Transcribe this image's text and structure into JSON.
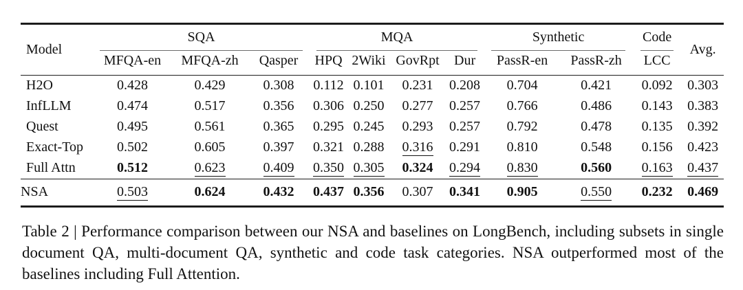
{
  "colors": {
    "background": "#ffffff",
    "text": "#111111",
    "rule_heavy": "#1c1c1c",
    "rule_light": "#1c1c1c",
    "cmidrule": "#6b6b6b"
  },
  "table": {
    "model_header": "Model",
    "avg_header": "Avg.",
    "groups": [
      {
        "label": "SQA",
        "span": 3
      },
      {
        "label": "MQA",
        "span": 4
      },
      {
        "label": "Synthetic",
        "span": 2
      },
      {
        "label": "Code",
        "span": 1
      }
    ],
    "columns": [
      "MFQA-en",
      "MFQA-zh",
      "Qasper",
      "HPQ",
      "2Wiki",
      "GovRpt",
      "Dur",
      "PassR-en",
      "PassR-zh",
      "LCC"
    ],
    "rows": [
      {
        "model": "H2O",
        "section": "baseline",
        "cells": [
          {
            "t": "0.428",
            "s": ""
          },
          {
            "t": "0.429",
            "s": ""
          },
          {
            "t": "0.308",
            "s": ""
          },
          {
            "t": "0.112",
            "s": ""
          },
          {
            "t": "0.101",
            "s": ""
          },
          {
            "t": "0.231",
            "s": ""
          },
          {
            "t": "0.208",
            "s": ""
          },
          {
            "t": "0.704",
            "s": ""
          },
          {
            "t": "0.421",
            "s": ""
          },
          {
            "t": "0.092",
            "s": ""
          },
          {
            "t": "0.303",
            "s": ""
          }
        ]
      },
      {
        "model": "InfLLM",
        "section": "baseline",
        "cells": [
          {
            "t": "0.474",
            "s": ""
          },
          {
            "t": "0.517",
            "s": ""
          },
          {
            "t": "0.356",
            "s": ""
          },
          {
            "t": "0.306",
            "s": ""
          },
          {
            "t": "0.250",
            "s": ""
          },
          {
            "t": "0.277",
            "s": ""
          },
          {
            "t": "0.257",
            "s": ""
          },
          {
            "t": "0.766",
            "s": ""
          },
          {
            "t": "0.486",
            "s": ""
          },
          {
            "t": "0.143",
            "s": ""
          },
          {
            "t": "0.383",
            "s": ""
          }
        ]
      },
      {
        "model": "Quest",
        "section": "baseline",
        "cells": [
          {
            "t": "0.495",
            "s": ""
          },
          {
            "t": "0.561",
            "s": ""
          },
          {
            "t": "0.365",
            "s": ""
          },
          {
            "t": "0.295",
            "s": ""
          },
          {
            "t": "0.245",
            "s": ""
          },
          {
            "t": "0.293",
            "s": ""
          },
          {
            "t": "0.257",
            "s": ""
          },
          {
            "t": "0.792",
            "s": ""
          },
          {
            "t": "0.478",
            "s": ""
          },
          {
            "t": "0.135",
            "s": ""
          },
          {
            "t": "0.392",
            "s": ""
          }
        ]
      },
      {
        "model": "Exact-Top",
        "section": "baseline",
        "cells": [
          {
            "t": "0.502",
            "s": ""
          },
          {
            "t": "0.605",
            "s": ""
          },
          {
            "t": "0.397",
            "s": ""
          },
          {
            "t": "0.321",
            "s": ""
          },
          {
            "t": "0.288",
            "s": ""
          },
          {
            "t": "0.316",
            "s": "u"
          },
          {
            "t": "0.291",
            "s": ""
          },
          {
            "t": "0.810",
            "s": ""
          },
          {
            "t": "0.548",
            "s": ""
          },
          {
            "t": "0.156",
            "s": ""
          },
          {
            "t": "0.423",
            "s": ""
          }
        ]
      },
      {
        "model": "Full Attn",
        "section": "baseline",
        "cells": [
          {
            "t": "0.512",
            "s": "b"
          },
          {
            "t": "0.623",
            "s": "u"
          },
          {
            "t": "0.409",
            "s": "u"
          },
          {
            "t": "0.350",
            "s": "u"
          },
          {
            "t": "0.305",
            "s": "u"
          },
          {
            "t": "0.324",
            "s": "b"
          },
          {
            "t": "0.294",
            "s": "u"
          },
          {
            "t": "0.830",
            "s": "u"
          },
          {
            "t": "0.560",
            "s": "b"
          },
          {
            "t": "0.163",
            "s": "u"
          },
          {
            "t": "0.437",
            "s": "u"
          }
        ]
      },
      {
        "model": "NSA",
        "section": "ours",
        "cells": [
          {
            "t": "0.503",
            "s": "u"
          },
          {
            "t": "0.624",
            "s": "b"
          },
          {
            "t": "0.432",
            "s": "b"
          },
          {
            "t": "0.437",
            "s": "b"
          },
          {
            "t": "0.356",
            "s": "b"
          },
          {
            "t": "0.307",
            "s": ""
          },
          {
            "t": "0.341",
            "s": "b"
          },
          {
            "t": "0.905",
            "s": "b"
          },
          {
            "t": "0.550",
            "s": "u"
          },
          {
            "t": "0.232",
            "s": "b"
          },
          {
            "t": "0.469",
            "s": "b"
          }
        ]
      }
    ]
  },
  "caption": {
    "text": "Table 2 | Performance comparison between our NSA and baselines on LongBench, including subsets in single document QA, multi-document QA, synthetic and code task categories. NSA outperformed most of the baselines including Full Attention."
  }
}
